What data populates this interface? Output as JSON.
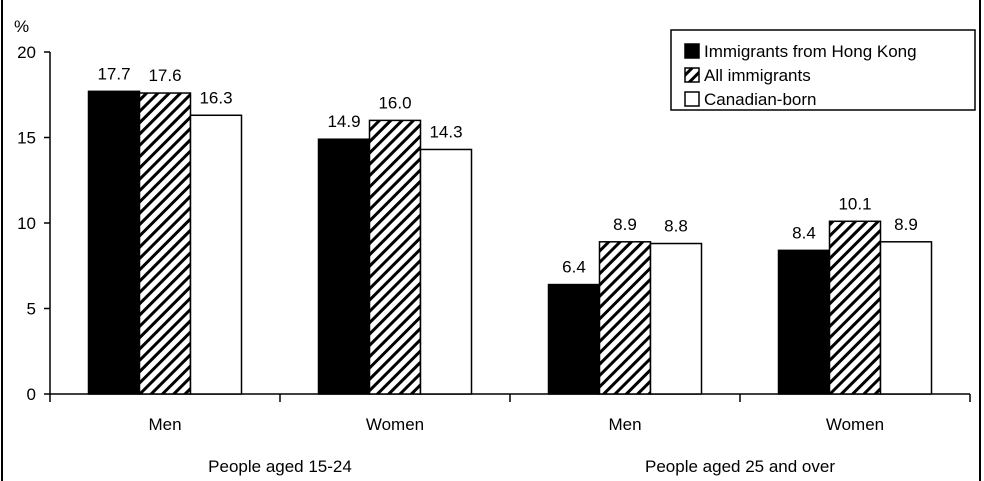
{
  "chart_data": {
    "type": "bar",
    "title": "",
    "xlabel": "",
    "ylabel": "%",
    "ylim": [
      0,
      20
    ],
    "yticks": [
      0,
      5,
      10,
      15,
      20
    ],
    "grid": false,
    "legend_position": "top-right",
    "categories": [
      "Men",
      "Women",
      "Men",
      "Women"
    ],
    "groups": [
      {
        "label": "People aged 15-24",
        "categories": [
          0,
          1
        ]
      },
      {
        "label": "People aged 25 and over",
        "categories": [
          2,
          3
        ]
      }
    ],
    "series": [
      {
        "name": "Immigrants from Hong Kong",
        "pattern": "solid",
        "color": "#000000",
        "values": [
          17.7,
          14.9,
          6.4,
          8.4
        ],
        "labels": [
          "17.7",
          "14.9",
          "6.4",
          "8.4"
        ]
      },
      {
        "name": "All immigrants",
        "pattern": "hatched",
        "color": "#000000",
        "values": [
          17.6,
          16.0,
          8.9,
          10.1
        ],
        "labels": [
          "17.6",
          "16.0",
          "8.9",
          "10.1"
        ]
      },
      {
        "name": "Canadian-born",
        "pattern": "hollow",
        "color": "#ffffff",
        "values": [
          16.3,
          14.3,
          8.8,
          8.9
        ],
        "labels": [
          "16.3",
          "14.3",
          "8.8",
          "8.9"
        ]
      }
    ]
  }
}
